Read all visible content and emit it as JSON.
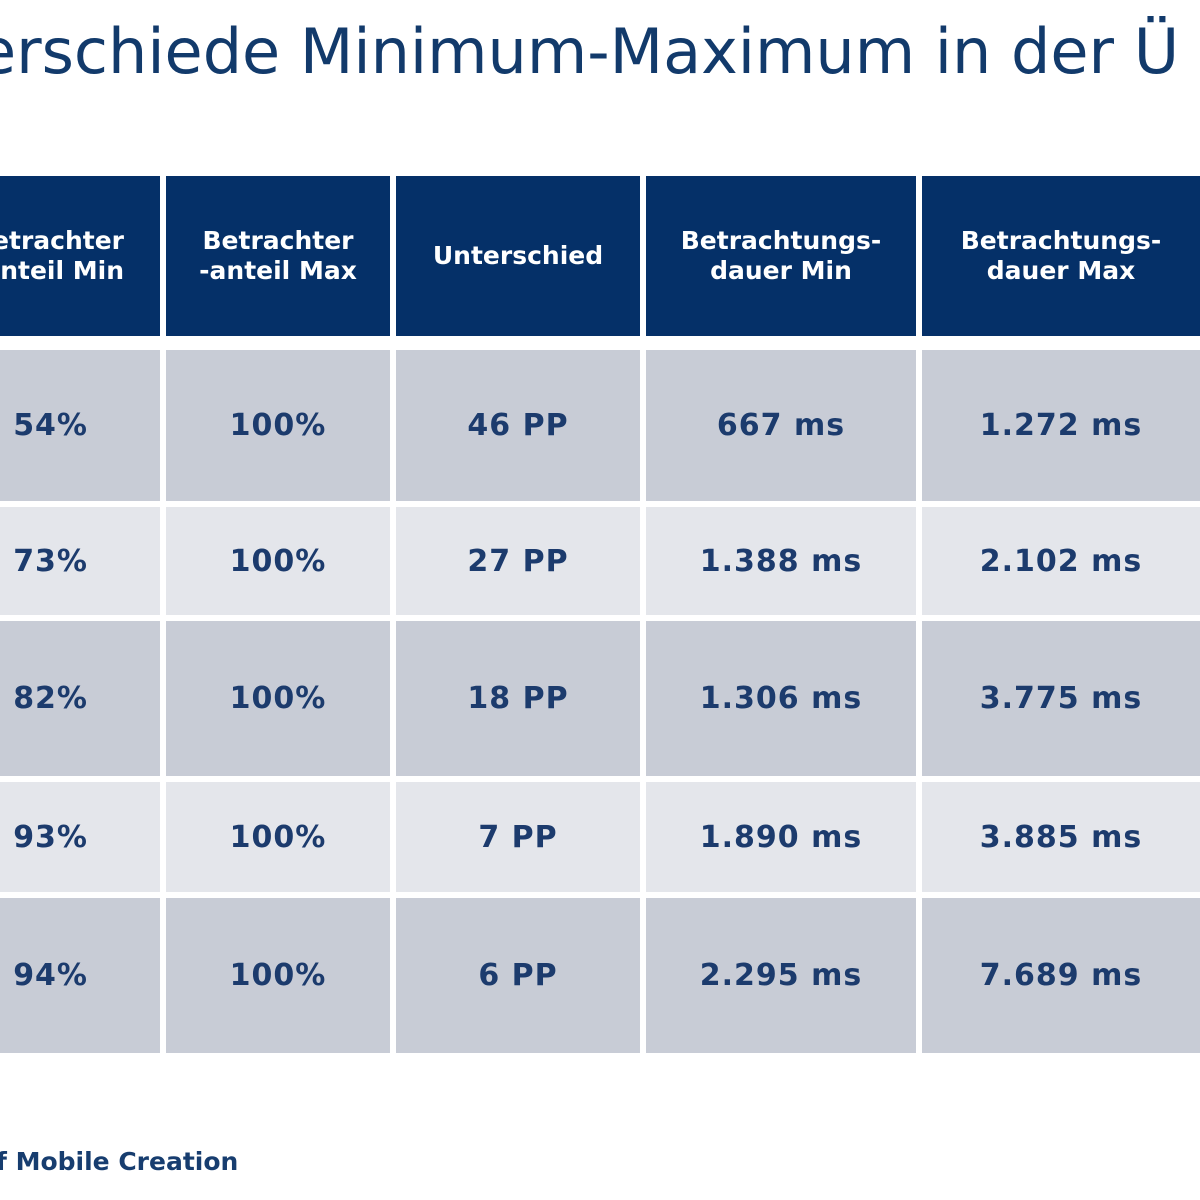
{
  "title": "erschiede Minimum-Maximum in der Ü",
  "table": {
    "headers": [
      "etrachter\nnteil Min",
      "Betrachter\n-anteil Max",
      "Unterschied",
      "Betrachtungs-\ndauer Min",
      "Betrachtungs-\ndauer Max"
    ],
    "rows": [
      [
        "54%",
        "100%",
        "46 PP",
        "667 ms",
        "1.272 ms"
      ],
      [
        "73%",
        "100%",
        "27 PP",
        "1.388 ms",
        "2.102 ms"
      ],
      [
        "82%",
        "100%",
        "18 PP",
        "1.306 ms",
        "3.775 ms"
      ],
      [
        "93%",
        "100%",
        "7 PP",
        "1.890 ms",
        "3.885 ms"
      ],
      [
        "94%",
        "100%",
        "6 PP",
        "2.295 ms",
        "7.689 ms"
      ]
    ]
  },
  "footer": "f Mobile Creation",
  "colors": {
    "header_bg": "#053068",
    "row_dark": "#c8ccd6",
    "row_light": "#e4e6eb",
    "text": "#1c3b6d"
  }
}
